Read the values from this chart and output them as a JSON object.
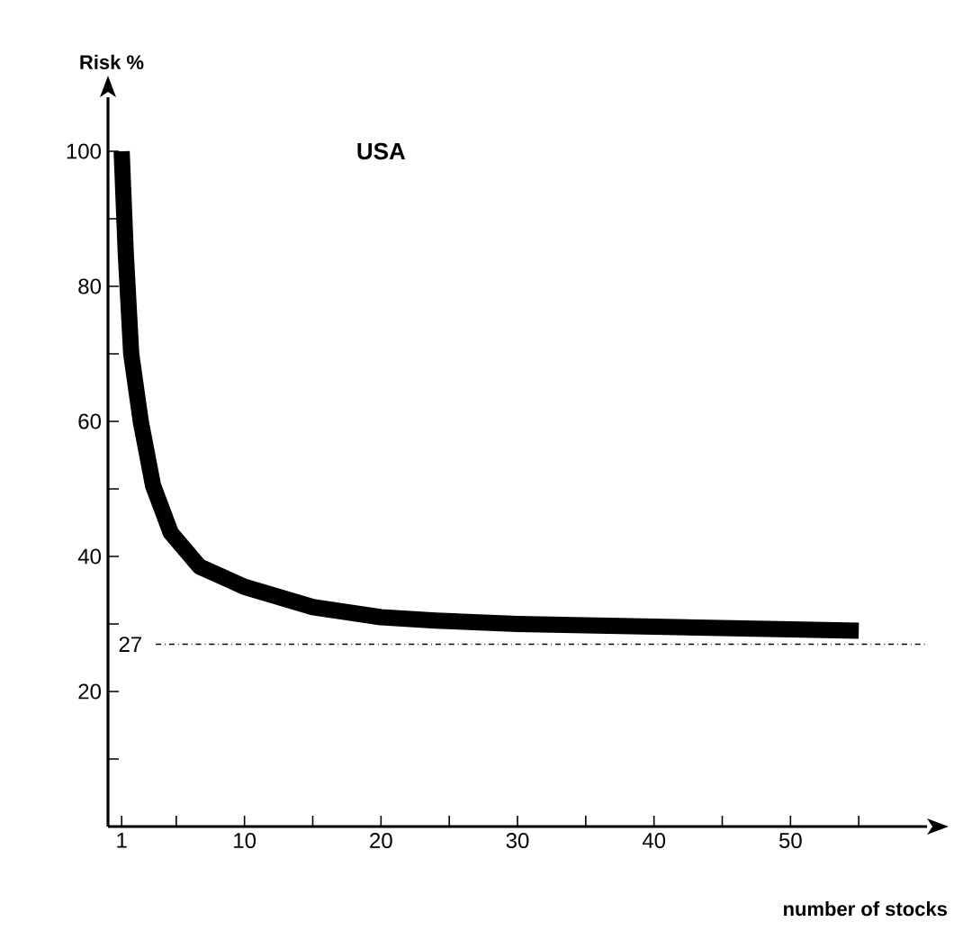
{
  "chart_data": {
    "type": "line",
    "title": "USA",
    "ylabel": "Risk %",
    "xlabel": "number of stocks",
    "x": [
      1,
      1.3,
      1.7,
      2.4,
      3.3,
      4.6,
      6.7,
      10,
      15,
      20,
      24,
      30,
      40,
      50,
      55
    ],
    "series": [
      {
        "color": "#000000",
        "values": [
          100,
          85,
          70,
          60,
          50.5,
          43.5,
          38.5,
          35.5,
          32.5,
          31,
          30.5,
          30,
          29.6,
          29.2,
          29
        ]
      }
    ],
    "xlim": [
      0,
      60
    ],
    "ylim": [
      0,
      108
    ],
    "xticks": [
      1,
      {
        "value": 5,
        "label": null
      },
      10,
      {
        "value": 15,
        "label": null
      },
      20,
      {
        "value": 25,
        "label": null
      },
      30,
      {
        "value": 35,
        "label": null
      },
      40,
      {
        "value": 45,
        "label": null
      },
      50,
      {
        "value": 55,
        "label": null
      }
    ],
    "yticks": [
      {
        "value": 10,
        "label": null
      },
      20,
      {
        "value": 30,
        "label": null
      },
      40,
      {
        "value": 50,
        "label": null
      },
      60,
      {
        "value": 70,
        "label": null
      },
      80,
      {
        "value": 90,
        "label": null
      },
      100
    ],
    "ref_lines": [
      {
        "axis": "y",
        "value": 27,
        "label": "27",
        "line_style": "dashdot"
      }
    ],
    "grid": false,
    "marker": "none",
    "line_style": "solid"
  }
}
